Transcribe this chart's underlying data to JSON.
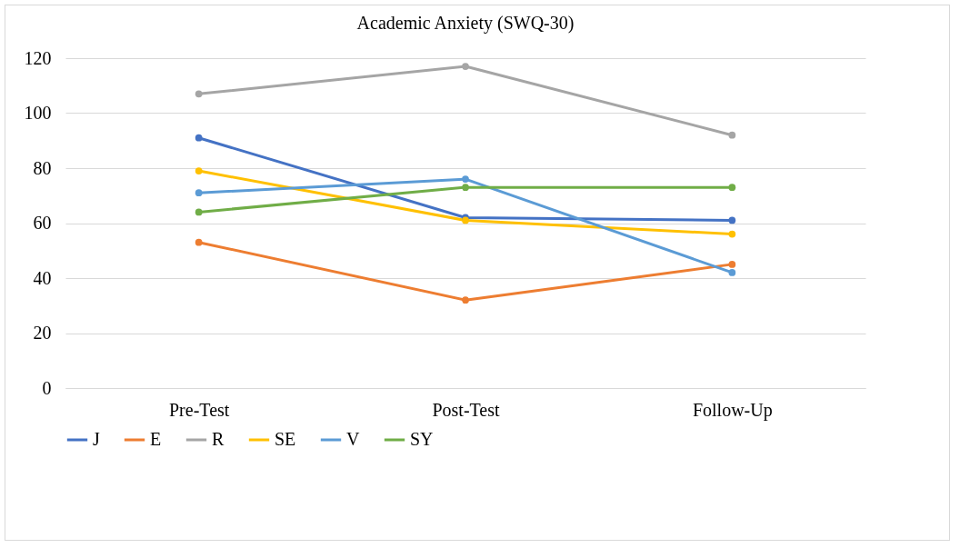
{
  "chart_data": {
    "type": "line",
    "title": "Academic Anxiety (SWQ-30)",
    "categories": [
      "Pre-Test",
      "Post-Test",
      "Follow-Up"
    ],
    "series": [
      {
        "name": "J",
        "color": "#4472c4",
        "values": [
          91,
          62,
          61
        ]
      },
      {
        "name": "E",
        "color": "#ed7d31",
        "values": [
          53,
          32,
          45
        ]
      },
      {
        "name": "R",
        "color": "#a5a5a5",
        "values": [
          107,
          117,
          92
        ]
      },
      {
        "name": "SE",
        "color": "#ffc000",
        "values": [
          79,
          61,
          56
        ]
      },
      {
        "name": "V",
        "color": "#5b9bd5",
        "values": [
          71,
          76,
          42
        ]
      },
      {
        "name": "SY",
        "color": "#70ad47",
        "values": [
          64,
          73,
          73
        ]
      }
    ],
    "ylim": [
      0,
      120
    ],
    "yticks": [
      0,
      20,
      40,
      60,
      80,
      100,
      120
    ],
    "grid": "y",
    "legend": "bottom",
    "marker": "circle",
    "line_style": "solid"
  }
}
